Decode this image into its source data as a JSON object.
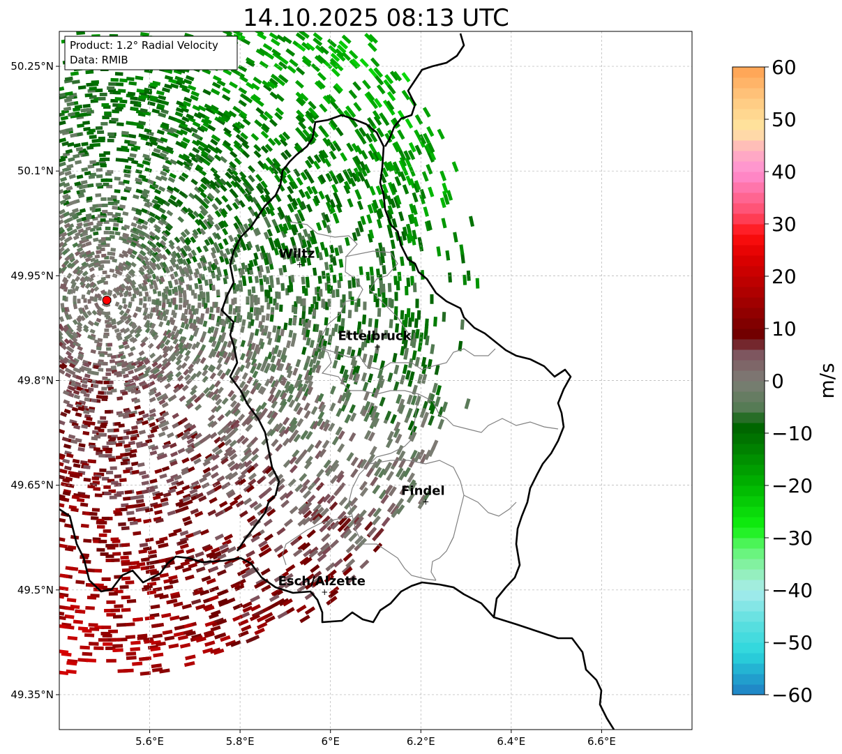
{
  "title": "14.10.2025 08:13 UTC",
  "info_box": {
    "product": "Product: 1.2° Radial Velocity",
    "source": "Data: RMIB"
  },
  "map": {
    "lon_range": [
      5.4,
      6.8
    ],
    "lat_range": [
      49.3,
      50.3
    ],
    "x_ticks": [
      "5.6°E",
      "5.8°E",
      "6°E",
      "6.2°E",
      "6.4°E",
      "6.6°E"
    ],
    "y_ticks": [
      "50.25°N",
      "50.1°N",
      "49.95°N",
      "49.8°N",
      "49.65°N",
      "49.5°N",
      "49.35°N"
    ],
    "grid": true,
    "radar_site": {
      "lon": 5.505,
      "lat": 49.915
    },
    "cities": [
      {
        "name": "Wiltz",
        "lon": 5.932,
        "lat": 49.966
      },
      {
        "name": "Ettelbruck",
        "lon": 6.104,
        "lat": 49.848
      },
      {
        "name": "Findel",
        "lon": 6.211,
        "lat": 49.626
      },
      {
        "name": "Esch/Alzette",
        "lon": 5.987,
        "lat": 49.497
      }
    ]
  },
  "colorbar": {
    "label": "m/s",
    "min": -60,
    "max": 60,
    "ticks": [
      "60",
      "50",
      "40",
      "30",
      "20",
      "10",
      "0",
      "−10",
      "−20",
      "−30",
      "−40",
      "−50",
      "−60"
    ],
    "color_stops": [
      {
        "v": -60,
        "c": "#1f7fc4"
      },
      {
        "v": -56,
        "c": "#22a8d0"
      },
      {
        "v": -52,
        "c": "#2bd6dc"
      },
      {
        "v": -46,
        "c": "#5fe0e0"
      },
      {
        "v": -40,
        "c": "#a8ecec"
      },
      {
        "v": -36,
        "c": "#8ef0b0"
      },
      {
        "v": -32,
        "c": "#5ef56e"
      },
      {
        "v": -28,
        "c": "#10f010"
      },
      {
        "v": -20,
        "c": "#00b400"
      },
      {
        "v": -12,
        "c": "#007a00"
      },
      {
        "v": -8,
        "c": "#005f00"
      },
      {
        "v": -6,
        "c": "#4e7a4e"
      },
      {
        "v": 0,
        "c": "#7d7d75"
      },
      {
        "v": 6,
        "c": "#7e4e5a"
      },
      {
        "v": 8,
        "c": "#6a0000"
      },
      {
        "v": 16,
        "c": "#a80000"
      },
      {
        "v": 24,
        "c": "#e00000"
      },
      {
        "v": 28,
        "c": "#ff1010"
      },
      {
        "v": 32,
        "c": "#ff4c6a"
      },
      {
        "v": 40,
        "c": "#ff8ed2"
      },
      {
        "v": 44,
        "c": "#ffb0c0"
      },
      {
        "v": 48,
        "c": "#ffe6a0"
      },
      {
        "v": 54,
        "c": "#ffc880"
      },
      {
        "v": 60,
        "c": "#ffa050"
      }
    ]
  },
  "colors": {
    "border_national": "#000000",
    "border_cantonal": "#808080",
    "radar_marker": "#ff0000"
  }
}
